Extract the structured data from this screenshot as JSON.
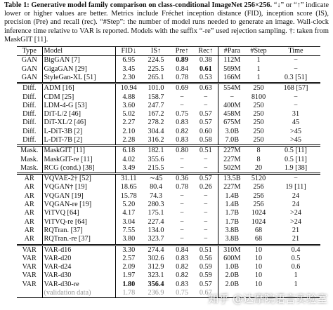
{
  "caption": {
    "label": "Table 1:",
    "title": "Generative model family comparison on class-conditional ImageNet 256×256.",
    "text": "“↓” or “↑” indicate lower or higher values are better. Metrics include Fréchet inception distance (FID), inception score (IS), precision (Pre) and recall (rec). “#Step”: the number of model runs needed to generate an image. Wall-clock inference time relative to VAR is reported. Models with the suffix “-re” used rejection sampling. †: taken from MaskGIT [11]."
  },
  "table": {
    "columns": [
      "Type",
      "Model",
      "FID↓",
      "IS↑",
      "Pre↑",
      "Rec↑",
      "#Para",
      "#Step",
      "Time"
    ],
    "groups": [
      {
        "rows": [
          [
            "GAN",
            "BigGAN [7]",
            "6.95",
            "224.5",
            {
              "text": "0.89",
              "bold": true
            },
            "0.38",
            "112M",
            "1",
            "−"
          ],
          [
            "GAN",
            "GigaGAN [29]",
            "3.45",
            "225.5",
            "0.84",
            {
              "text": "0.61",
              "bold": true
            },
            "569M",
            "1",
            "−"
          ],
          [
            "GAN",
            "StyleGan-XL [51]",
            "2.30",
            "265.1",
            "0.78",
            "0.53",
            "166M",
            "1",
            "0.3 [51]"
          ]
        ]
      },
      {
        "rows": [
          [
            "Diff.",
            "ADM [16]",
            "10.94",
            "101.0",
            "0.69",
            "0.63",
            "554M",
            "250",
            "168 [57]"
          ],
          [
            "Diff.",
            "CDM [25]",
            "4.88",
            "158.7",
            "−",
            "−",
            "−",
            "8100",
            "−"
          ],
          [
            "Diff.",
            "LDM-4-G [53]",
            "3.60",
            "247.7",
            "−",
            "−",
            "400M",
            "250",
            "−"
          ],
          [
            "Diff.",
            "DiT-L/2 [46]",
            "5.02",
            "167.2",
            "0.75",
            "0.57",
            "458M",
            "250",
            "31"
          ],
          [
            "Diff.",
            "DiT-XL/2 [46]",
            "2.27",
            "278.2",
            "0.83",
            "0.57",
            "675M",
            "250",
            "45"
          ],
          [
            "Diff.",
            "L-DiT-3B [2]",
            "2.10",
            "304.4",
            "0.82",
            "0.60",
            "3.0B",
            "250",
            ">45"
          ],
          [
            "Diff.",
            "L-DiT-7B [2]",
            "2.28",
            "316.2",
            "0.83",
            "0.58",
            "7.0B",
            "250",
            ">45"
          ]
        ]
      },
      {
        "rows": [
          [
            "Mask.",
            "MaskGIT [11]",
            "6.18",
            "182.1",
            "0.80",
            "0.51",
            "227M",
            "8",
            "0.5 [11]"
          ],
          [
            "Mask.",
            "MaskGIT-re [11]",
            "4.02",
            "355.6",
            "−",
            "−",
            "227M",
            "8",
            "0.5 [11]"
          ],
          [
            "Mask.",
            "RCG (cond.) [38]",
            "3.49",
            "215.5",
            "−",
            "−",
            "502M",
            "20",
            "1.9 [38]"
          ]
        ]
      },
      {
        "rows": [
          [
            "AR",
            "VQVAE-2† [52]",
            "31.11",
            "∼45",
            "0.36",
            "0.57",
            "13.5B",
            "5120",
            "−"
          ],
          [
            "AR",
            "VQGAN† [19]",
            "18.65",
            "80.4",
            "0.78",
            "0.26",
            "227M",
            "256",
            "19 [11]"
          ],
          [
            "AR",
            "VQGAN [19]",
            "15.78",
            "74.3",
            "−",
            "−",
            "1.4B",
            "256",
            "24"
          ],
          [
            "AR",
            "VQGAN-re [19]",
            "5.20",
            "280.3",
            "−",
            "−",
            "1.4B",
            "256",
            "24"
          ],
          [
            "AR",
            "ViTVQ [64]",
            "4.17",
            "175.1",
            "−",
            "−",
            "1.7B",
            "1024",
            ">24"
          ],
          [
            "AR",
            "ViTVQ-re [64]",
            "3.04",
            "227.4",
            "−",
            "−",
            "1.7B",
            "1024",
            ">24"
          ],
          [
            "AR",
            "RQTran. [37]",
            "7.55",
            "134.0",
            "−",
            "−",
            "3.8B",
            "68",
            "21"
          ],
          [
            "AR",
            "RQTran.-re [37]",
            "3.80",
            "323.7",
            "−",
            "−",
            "3.8B",
            "68",
            "21"
          ]
        ]
      },
      {
        "rows": [
          [
            "VAR",
            "VAR-d16",
            "3.30",
            "274.4",
            "0.84",
            "0.51",
            "310M",
            "10",
            "0.4"
          ],
          [
            "VAR",
            "VAR-d20",
            "2.57",
            "302.6",
            "0.83",
            "0.56",
            "600M",
            "10",
            "0.5"
          ],
          [
            "VAR",
            "VAR-d24",
            "2.09",
            "312.9",
            "0.82",
            "0.59",
            "1.0B",
            "10",
            "0.6"
          ],
          [
            "VAR",
            "VAR-d30",
            "1.97",
            "323.1",
            "0.82",
            "0.59",
            "2.0B",
            "10",
            "1"
          ],
          [
            "VAR",
            "VAR-d30-re",
            {
              "text": "1.80",
              "bold": true
            },
            {
              "text": "356.4",
              "bold": true
            },
            "0.83",
            "0.57",
            "2.0B",
            "10",
            "1"
          ]
        ],
        "reference_row": [
          "(validation data)",
          "1.78",
          "236.9",
          "0.75",
          "0.67"
        ]
      }
    ]
  },
  "watermark": "知乎 @达摩院语言实验室"
}
